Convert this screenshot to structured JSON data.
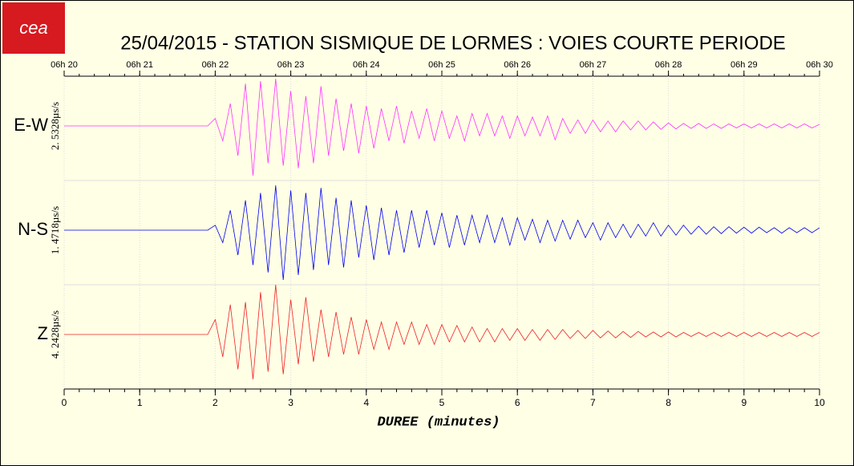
{
  "chart_data": {
    "type": "seismogram",
    "logo": "cea",
    "title": "25/04/2015  -  STATION SISMIQUE DE LORMES : VOIES COURTE PERIODE",
    "xlabel": "DUREE (minutes)",
    "xlim": [
      0,
      10
    ],
    "xticks": [
      0,
      1,
      2,
      3,
      4,
      5,
      6,
      7,
      8,
      9,
      10
    ],
    "x2ticks": [
      {
        "value": 0,
        "label": "06h 20"
      },
      {
        "value": 1,
        "label": "06h 21"
      },
      {
        "value": 2,
        "label": "06h 22"
      },
      {
        "value": 3,
        "label": "06h 23"
      },
      {
        "value": 4,
        "label": "06h 24"
      },
      {
        "value": 5,
        "label": "06h 25"
      },
      {
        "value": 6,
        "label": "06h 26"
      },
      {
        "value": 7,
        "label": "06h 27"
      },
      {
        "value": 8,
        "label": "06h 28"
      },
      {
        "value": 9,
        "label": "06h 29"
      },
      {
        "value": 10,
        "label": "06h 30"
      }
    ],
    "ylim": [
      -1,
      1
    ],
    "grid": true,
    "x": [
      0,
      0.1,
      0.2,
      0.3,
      0.4,
      0.5,
      0.6,
      0.7,
      0.8,
      0.9,
      1,
      1.1,
      1.2,
      1.3,
      1.4,
      1.5,
      1.6,
      1.7,
      1.8,
      1.9,
      2,
      2.1,
      2.2,
      2.3,
      2.4,
      2.5,
      2.6,
      2.7,
      2.8,
      2.9,
      3,
      3.1,
      3.2,
      3.3,
      3.4,
      3.5,
      3.6,
      3.7,
      3.8,
      3.9,
      4,
      4.1,
      4.2,
      4.3,
      4.4,
      4.5,
      4.6,
      4.7,
      4.8,
      4.9,
      5,
      5.1,
      5.2,
      5.3,
      5.4,
      5.5,
      5.6,
      5.7,
      5.8,
      5.9,
      6,
      6.1,
      6.2,
      6.3,
      6.4,
      6.5,
      6.6,
      6.7,
      6.8,
      6.9,
      7,
      7.1,
      7.2,
      7.3,
      7.4,
      7.5,
      7.6,
      7.7,
      7.8,
      7.9,
      8,
      8.1,
      8.2,
      8.3,
      8.4,
      8.5,
      8.6,
      8.7,
      8.8,
      8.9,
      9,
      9.1,
      9.2,
      9.3,
      9.4,
      9.5,
      9.6,
      9.7,
      9.8,
      9.9,
      10
    ],
    "series": [
      {
        "name": "E-W",
        "scale": "2. 5328µs/s",
        "color": "#ff33ff",
        "values": [
          0,
          0,
          0,
          0,
          0,
          0,
          0,
          0,
          0,
          0,
          0,
          0,
          0,
          0,
          0,
          0,
          0,
          0,
          0,
          0,
          0.15,
          -0.3,
          0.45,
          -0.6,
          0.85,
          -1.0,
          0.9,
          -0.75,
          0.95,
          -0.8,
          0.7,
          -0.85,
          0.6,
          -0.75,
          0.8,
          -0.6,
          0.55,
          -0.5,
          0.45,
          -0.55,
          0.4,
          -0.45,
          0.35,
          -0.3,
          0.4,
          -0.35,
          0.3,
          -0.25,
          0.35,
          -0.3,
          0.3,
          -0.25,
          0.2,
          -0.3,
          0.25,
          -0.2,
          0.25,
          -0.2,
          0.2,
          -0.25,
          0.2,
          -0.2,
          0.18,
          -0.2,
          0.2,
          -0.28,
          0.15,
          -0.15,
          0.12,
          -0.15,
          0.12,
          -0.12,
          0.1,
          -0.12,
          0.1,
          -0.08,
          0.1,
          -0.08,
          0.08,
          -0.07,
          0.06,
          -0.06,
          0.05,
          -0.05,
          0.05,
          -0.05,
          0.04,
          -0.05,
          0.04,
          -0.04,
          0.04,
          -0.04,
          0.04,
          -0.04,
          0.04,
          -0.04,
          0.04,
          -0.04,
          0.04,
          -0.04,
          0.03
        ]
      },
      {
        "name": "N-S",
        "scale": "1. 4718µs/s",
        "color": "#0000ee",
        "values": [
          0,
          0,
          0,
          0,
          0,
          0,
          0,
          0,
          0,
          0,
          0,
          0,
          0,
          0,
          0,
          0,
          0,
          0,
          0,
          0,
          0.1,
          -0.25,
          0.4,
          -0.5,
          0.6,
          -0.7,
          0.75,
          -0.85,
          0.9,
          -1.0,
          0.8,
          -0.9,
          0.75,
          -0.8,
          0.85,
          -0.7,
          0.65,
          -0.75,
          0.6,
          -0.55,
          0.5,
          -0.6,
          0.45,
          -0.5,
          0.4,
          -0.45,
          0.4,
          -0.35,
          0.4,
          -0.3,
          0.35,
          -0.35,
          0.3,
          -0.3,
          0.3,
          -0.25,
          0.3,
          -0.25,
          0.25,
          -0.3,
          0.25,
          -0.2,
          0.22,
          -0.25,
          0.2,
          -0.22,
          0.2,
          -0.18,
          0.2,
          -0.15,
          0.15,
          -0.2,
          0.15,
          -0.15,
          0.12,
          -0.15,
          0.12,
          -0.12,
          0.15,
          -0.12,
          0.1,
          -0.1,
          0.1,
          -0.08,
          0.08,
          -0.08,
          0.07,
          -0.07,
          0.07,
          -0.06,
          0.06,
          -0.06,
          0.06,
          -0.05,
          0.05,
          -0.06,
          0.05,
          -0.05,
          0.05,
          -0.05,
          0.05
        ]
      },
      {
        "name": "Z",
        "scale": "4. 2428µs/s",
        "color": "#ee2222",
        "values": [
          0,
          0,
          0,
          0,
          0,
          0,
          0,
          0,
          0,
          0,
          0,
          0,
          0,
          0,
          0,
          0,
          0,
          0,
          0,
          0,
          0.3,
          -0.45,
          0.6,
          -0.7,
          0.65,
          -0.9,
          0.85,
          -0.75,
          1.0,
          -0.8,
          0.7,
          -0.6,
          0.75,
          -0.55,
          0.5,
          -0.45,
          0.45,
          -0.4,
          0.35,
          -0.4,
          0.3,
          -0.3,
          0.25,
          -0.3,
          0.25,
          -0.2,
          0.25,
          -0.2,
          0.2,
          -0.2,
          0.2,
          -0.15,
          0.18,
          -0.15,
          0.15,
          -0.15,
          0.12,
          -0.15,
          0.12,
          -0.12,
          0.12,
          -0.12,
          0.1,
          -0.12,
          0.1,
          -0.1,
          0.1,
          -0.08,
          0.08,
          -0.08,
          0.08,
          -0.07,
          0.07,
          -0.07,
          0.06,
          -0.06,
          0.06,
          -0.05,
          0.05,
          -0.05,
          0.05,
          -0.05,
          0.04,
          -0.04,
          0.04,
          -0.04,
          0.04,
          -0.04,
          0.04,
          -0.04,
          0.04,
          -0.04,
          0.04,
          -0.04,
          0.04,
          -0.04,
          0.04,
          -0.04,
          0.04,
          -0.04,
          0.04
        ]
      }
    ]
  }
}
